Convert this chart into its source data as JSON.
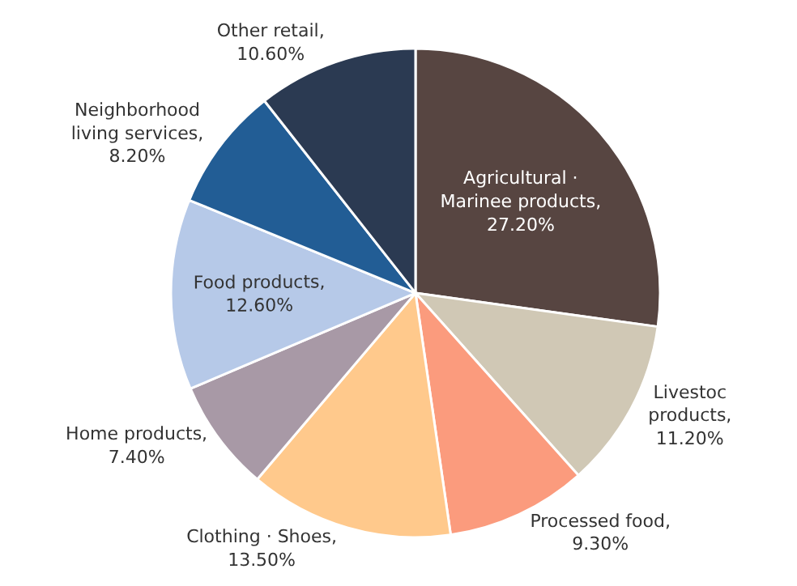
{
  "chart_data": {
    "type": "pie",
    "categories": [
      "Agricultural · Marinee products, 27.20%",
      "Livestoc products, 11.20%",
      "Processed food, 9.30%",
      "Clothing · Shoes, 13.50%",
      "Home products, 7.40%",
      "Food products, 12.60%",
      "Neighborhood living services, 8.20%",
      "Other retail, 10.60%"
    ],
    "values": [
      27.2,
      11.2,
      9.3,
      13.5,
      7.4,
      12.6,
      8.2,
      10.6
    ],
    "colors": [
      "#574541",
      "#d0c8b5",
      "#fb9b7d",
      "#ffc98c",
      "#a899a6",
      "#b6c9e8",
      "#225d95",
      "#2b3a52"
    ],
    "legend": false
  }
}
